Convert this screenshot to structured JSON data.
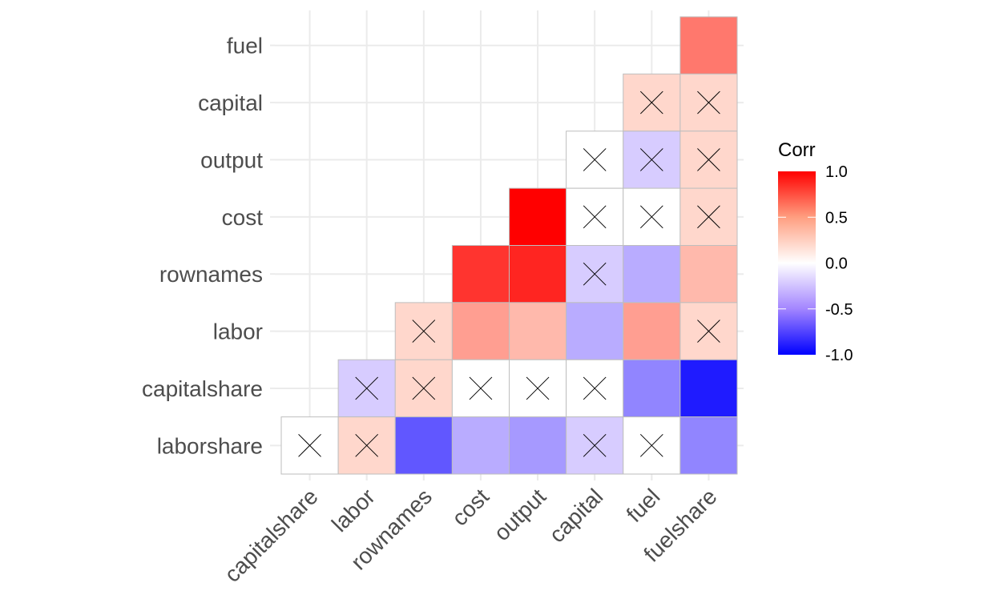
{
  "chart_data": {
    "type": "heatmap",
    "title": "",
    "xlabel": "",
    "ylabel": "",
    "x_categories": [
      "capitalshare",
      "labor",
      "rownames",
      "cost",
      "output",
      "capital",
      "fuel",
      "fuelshare"
    ],
    "y_categories": [
      "laborshare",
      "capitalshare",
      "labor",
      "rownames",
      "cost",
      "output",
      "capital",
      "fuel"
    ],
    "grid": true,
    "cells": [
      {
        "y": "fuel",
        "x": "fuelshare",
        "value": 0.45,
        "insignificant": false
      },
      {
        "y": "capital",
        "x": "fuel",
        "value": 0.1,
        "insignificant": true
      },
      {
        "y": "capital",
        "x": "fuelshare",
        "value": 0.1,
        "insignificant": true
      },
      {
        "y": "output",
        "x": "capital",
        "value": 0.0,
        "insignificant": true
      },
      {
        "y": "output",
        "x": "fuel",
        "value": -0.1,
        "insignificant": true
      },
      {
        "y": "output",
        "x": "fuelshare",
        "value": 0.1,
        "insignificant": true
      },
      {
        "y": "cost",
        "x": "output",
        "value": 1.0,
        "insignificant": false
      },
      {
        "y": "cost",
        "x": "capital",
        "value": 0.0,
        "insignificant": true
      },
      {
        "y": "cost",
        "x": "fuel",
        "value": 0.0,
        "insignificant": true
      },
      {
        "y": "cost",
        "x": "fuelshare",
        "value": 0.1,
        "insignificant": true
      },
      {
        "y": "rownames",
        "x": "cost",
        "value": 0.75,
        "insignificant": false
      },
      {
        "y": "rownames",
        "x": "output",
        "value": 0.82,
        "insignificant": false
      },
      {
        "y": "rownames",
        "x": "capital",
        "value": -0.1,
        "insignificant": true
      },
      {
        "y": "rownames",
        "x": "fuel",
        "value": -0.2,
        "insignificant": false
      },
      {
        "y": "rownames",
        "x": "fuelshare",
        "value": 0.2,
        "insignificant": false
      },
      {
        "y": "labor",
        "x": "rownames",
        "value": 0.1,
        "insignificant": true
      },
      {
        "y": "labor",
        "x": "cost",
        "value": 0.3,
        "insignificant": false
      },
      {
        "y": "labor",
        "x": "output",
        "value": 0.2,
        "insignificant": false
      },
      {
        "y": "labor",
        "x": "capital",
        "value": -0.2,
        "insignificant": false
      },
      {
        "y": "labor",
        "x": "fuel",
        "value": 0.3,
        "insignificant": false
      },
      {
        "y": "labor",
        "x": "fuelshare",
        "value": 0.1,
        "insignificant": true
      },
      {
        "y": "capitalshare",
        "x": "labor",
        "value": -0.1,
        "insignificant": true
      },
      {
        "y": "capitalshare",
        "x": "rownames",
        "value": 0.1,
        "insignificant": true
      },
      {
        "y": "capitalshare",
        "x": "cost",
        "value": 0.0,
        "insignificant": true
      },
      {
        "y": "capitalshare",
        "x": "output",
        "value": 0.0,
        "insignificant": true
      },
      {
        "y": "capitalshare",
        "x": "capital",
        "value": 0.0,
        "insignificant": true
      },
      {
        "y": "capitalshare",
        "x": "fuel",
        "value": -0.35,
        "insignificant": false
      },
      {
        "y": "capitalshare",
        "x": "fuelshare",
        "value": -0.85,
        "insignificant": false
      },
      {
        "y": "laborshare",
        "x": "capitalshare",
        "value": 0.0,
        "insignificant": true
      },
      {
        "y": "laborshare",
        "x": "labor",
        "value": 0.1,
        "insignificant": true
      },
      {
        "y": "laborshare",
        "x": "rownames",
        "value": -0.55,
        "insignificant": false
      },
      {
        "y": "laborshare",
        "x": "cost",
        "value": -0.2,
        "insignificant": false
      },
      {
        "y": "laborshare",
        "x": "output",
        "value": -0.27,
        "insignificant": false
      },
      {
        "y": "laborshare",
        "x": "capital",
        "value": -0.1,
        "insignificant": true
      },
      {
        "y": "laborshare",
        "x": "fuel",
        "value": 0.0,
        "insignificant": true
      },
      {
        "y": "laborshare",
        "x": "fuelshare",
        "value": -0.35,
        "insignificant": false
      }
    ],
    "legend": {
      "title": "Corr",
      "position": "right",
      "range": [
        -1.0,
        1.0
      ],
      "ticks": [
        1.0,
        0.5,
        0.0,
        -0.5,
        -1.0
      ],
      "tick_labels": [
        "1.0",
        "0.5",
        "0.0",
        "-0.5",
        "-1.0"
      ],
      "low_color": "#0000FF",
      "mid_color": "#FFFFFF",
      "high_color": "#FF0000"
    },
    "colors": {
      "cell_border": "#BEBEBE",
      "grid": "#EBEBEB",
      "axis_text": "#4D4D4D",
      "insignificant_mark": "#000000"
    }
  }
}
